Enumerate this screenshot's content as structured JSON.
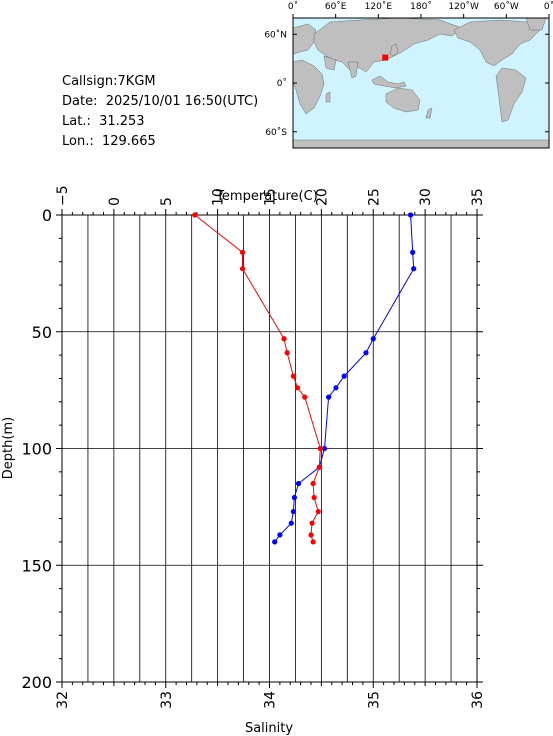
{
  "station": {
    "callsign": "Callsign:7KGM",
    "date": "Date:  2025/10/01 16:50(UTC)",
    "lat": "Lat.:  31.253",
    "lon": "Lon.:  129.665"
  },
  "map": {
    "top_ticks": [
      "0˚",
      "60˚E",
      "120˚E",
      "180˚",
      "120˚W",
      "60˚W",
      "0˚"
    ],
    "left_ticks": [
      "60˚N",
      "0˚",
      "60˚S"
    ],
    "ocean_color": "#cff3ff",
    "land_color": "#bfbfbf",
    "marker_color": "#ff0000",
    "marker": {
      "lon": 129.665,
      "lat": 31.253
    }
  },
  "chart_data": {
    "type": "line",
    "xlabel_top": "Temperature(C)",
    "xlabel_bottom": "Salinity",
    "ylabel": "Depth(m)",
    "temperature_ticks": [
      "−5",
      "0",
      "5",
      "10",
      "15",
      "20",
      "25",
      "30",
      "35"
    ],
    "salinity_ticks": [
      "32",
      "33",
      "34",
      "35",
      "36"
    ],
    "depth_ticks": [
      "0",
      "50",
      "100",
      "150",
      "200"
    ],
    "xlim_temperature": [
      -5,
      35
    ],
    "xlim_salinity": [
      32,
      36
    ],
    "ylim_depth": [
      0,
      200
    ],
    "grid": true,
    "series": [
      {
        "axis": "temperature",
        "color": "#0000ff",
        "points": [
          {
            "x": 28.6,
            "y": 0
          },
          {
            "x": 28.8,
            "y": 16
          },
          {
            "x": 28.9,
            "y": 23
          },
          {
            "x": 25.0,
            "y": 53
          },
          {
            "x": 24.3,
            "y": 59
          },
          {
            "x": 22.2,
            "y": 69
          },
          {
            "x": 21.4,
            "y": 74
          },
          {
            "x": 20.7,
            "y": 78
          },
          {
            "x": 20.3,
            "y": 100
          },
          {
            "x": 19.8,
            "y": 108
          },
          {
            "x": 17.8,
            "y": 115
          },
          {
            "x": 17.4,
            "y": 121
          },
          {
            "x": 17.3,
            "y": 127
          },
          {
            "x": 17.1,
            "y": 132
          },
          {
            "x": 16.0,
            "y": 137
          },
          {
            "x": 15.5,
            "y": 140
          }
        ]
      },
      {
        "axis": "salinity",
        "color": "#ff0000",
        "points": [
          {
            "x": 33.28,
            "y": 0
          },
          {
            "x": 33.74,
            "y": 16
          },
          {
            "x": 33.74,
            "y": 23
          },
          {
            "x": 34.14,
            "y": 53
          },
          {
            "x": 34.17,
            "y": 59
          },
          {
            "x": 34.23,
            "y": 69
          },
          {
            "x": 34.27,
            "y": 74
          },
          {
            "x": 34.34,
            "y": 78
          },
          {
            "x": 34.49,
            "y": 100
          },
          {
            "x": 34.48,
            "y": 108
          },
          {
            "x": 34.42,
            "y": 115
          },
          {
            "x": 34.43,
            "y": 121
          },
          {
            "x": 34.47,
            "y": 127
          },
          {
            "x": 34.41,
            "y": 132
          },
          {
            "x": 34.4,
            "y": 137
          },
          {
            "x": 34.42,
            "y": 140
          }
        ]
      }
    ]
  }
}
